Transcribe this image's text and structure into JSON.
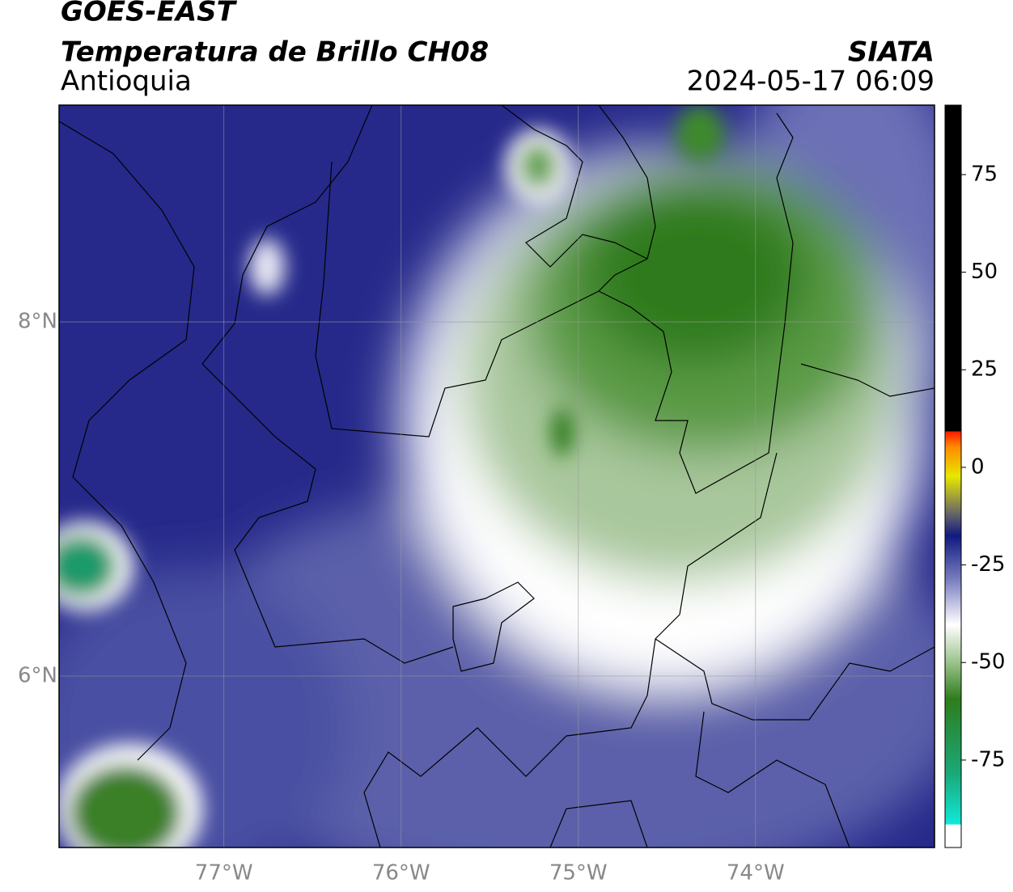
{
  "header": {
    "satellite": "GOES-EAST",
    "product": "Temperatura de Brillo CH08",
    "region": "Antioquia",
    "source": "SIATA",
    "datetime": "2024-05-17 06:09"
  },
  "map": {
    "lonlim": [
      -77.93,
      -72.99
    ],
    "latlim": [
      5.032,
      9.224
    ],
    "lon_ticks": [
      {
        "value": -77,
        "label": "77°W"
      },
      {
        "value": -76,
        "label": "76°W"
      },
      {
        "value": -75,
        "label": "75°W"
      },
      {
        "value": -74,
        "label": "74°W"
      }
    ],
    "lat_ticks": [
      {
        "value": 8,
        "label": "8°N"
      },
      {
        "value": 6,
        "label": "6°N"
      }
    ]
  },
  "colorbar": {
    "lim": [
      -97.4,
      92.8
    ],
    "ticks": [
      75,
      50,
      25,
      0,
      -25,
      -50,
      -75
    ]
  }
}
